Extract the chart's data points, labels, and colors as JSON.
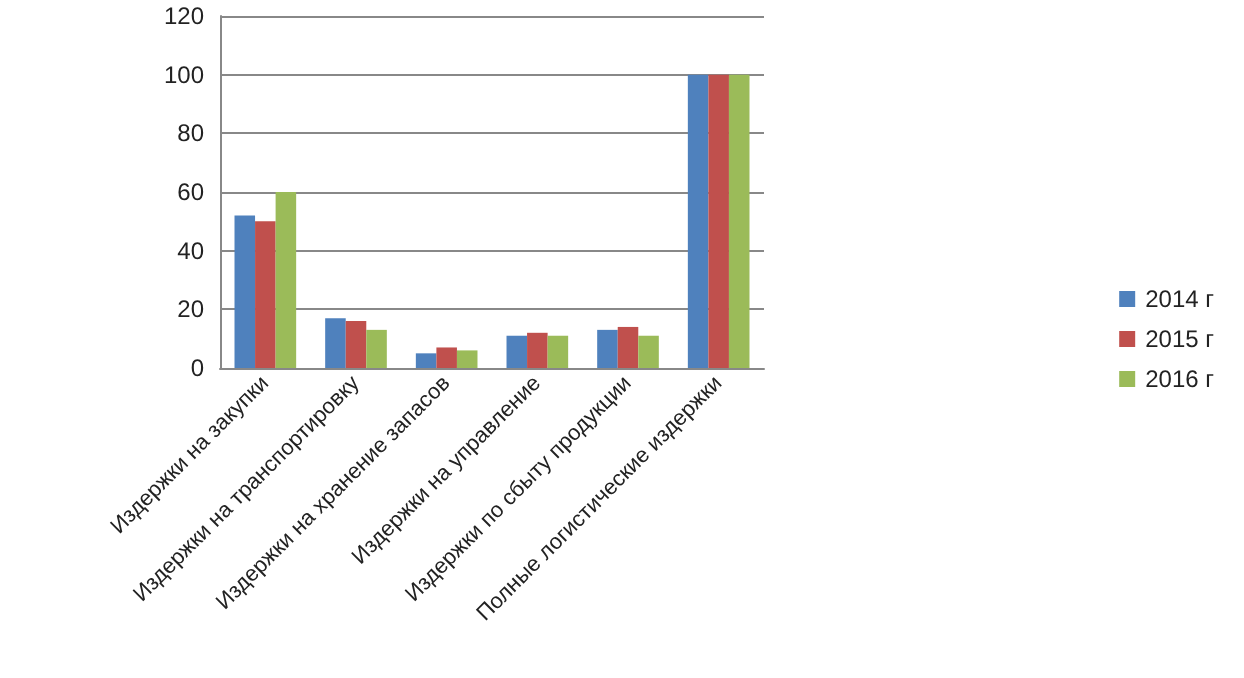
{
  "chart_data": {
    "type": "bar",
    "categories": [
      "Издержки на закупки",
      "Издержки на транспортировку",
      "Издержки на хранение запасов",
      "Издержки на управление",
      "Издержки по сбыту продукции",
      "Полные логистические издержки"
    ],
    "series": [
      {
        "name": "2014 г",
        "color": "#4f81bd",
        "values": [
          52,
          17,
          5,
          11,
          13,
          100
        ]
      },
      {
        "name": "2015 г",
        "color": "#c0504d",
        "values": [
          50,
          16,
          7,
          12,
          14,
          100
        ]
      },
      {
        "name": "2016 г",
        "color": "#9bbb59",
        "values": [
          60,
          13,
          6,
          11,
          11,
          100
        ]
      }
    ],
    "ylim": [
      0,
      120
    ],
    "yticks": [
      0,
      20,
      40,
      60,
      80,
      100,
      120
    ],
    "grid": "y",
    "legend": "right"
  }
}
